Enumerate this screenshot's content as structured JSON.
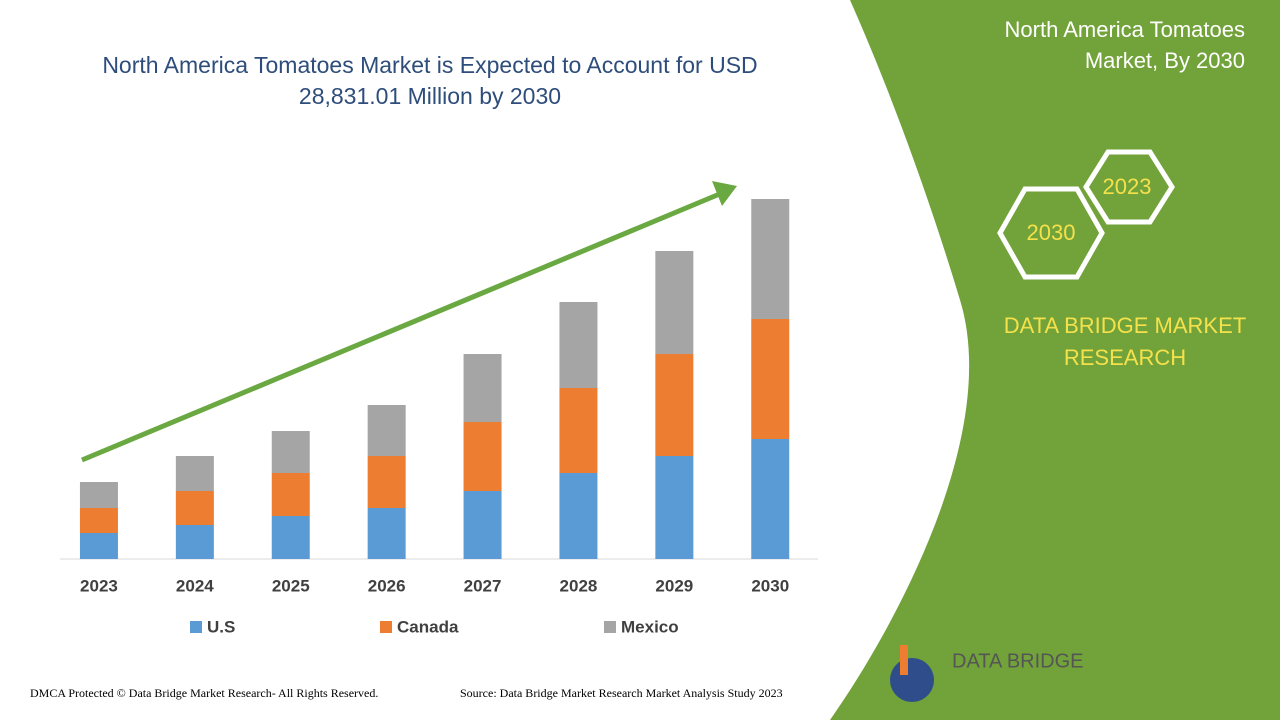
{
  "chart_data": {
    "type": "bar",
    "stacked": true,
    "title": "North America Tomatoes Market is Expected to Account for USD 28,831.01 Million by 2030",
    "categories": [
      "2023",
      "2024",
      "2025",
      "2026",
      "2027",
      "2028",
      "2029",
      "2030"
    ],
    "series": [
      {
        "name": "U.S",
        "color": "#5b9bd5",
        "values": [
          26,
          34,
          43,
          51,
          68,
          86,
          103,
          120
        ]
      },
      {
        "name": "Canada",
        "color": "#ed7d31",
        "values": [
          25,
          34,
          43,
          52,
          69,
          85,
          102,
          120
        ]
      },
      {
        "name": "Mexico",
        "color": "#a5a5a5",
        "values": [
          26,
          35,
          42,
          51,
          68,
          86,
          103,
          120
        ]
      }
    ]
  },
  "panel": {
    "title": "North America Tomatoes Market, By 2030",
    "hex_top": "2023",
    "hex_bottom": "2030",
    "brand": "DATA BRIDGE MARKET RESEARCH",
    "logo": "DATA BRIDGE"
  },
  "footer": {
    "left": "DMCA Protected © Data Bridge Market Research- All Rights Reserved.",
    "right": "Source: Data Bridge Market Research Market Analysis Study 2023"
  }
}
